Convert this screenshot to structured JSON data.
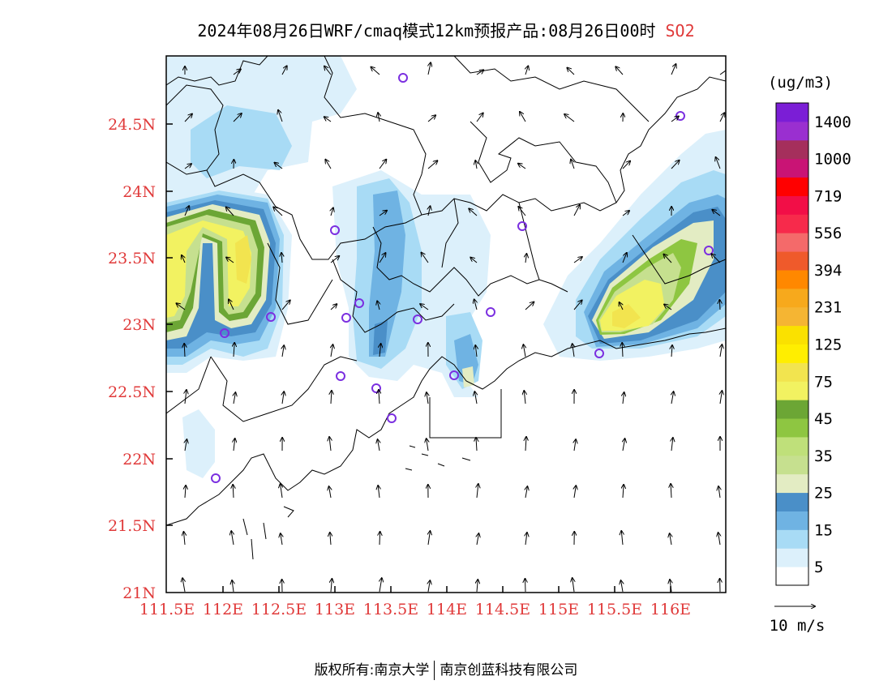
{
  "title": {
    "main": "2024年08月26日WRF/cmaq模式12km预报产品:08月26日00时",
    "pollutant": "SO2"
  },
  "map": {
    "lat_labels": [
      "24.5N",
      "24N",
      "23.5N",
      "23N",
      "22.5N",
      "22N",
      "21.5N",
      "21N"
    ],
    "lon_labels": [
      "111.5E",
      "112E",
      "112.5E",
      "113E",
      "113.5E",
      "114E",
      "114.5E",
      "115E",
      "115.5E",
      "116E"
    ]
  },
  "colorbar": {
    "unit": "(ug/m3)",
    "colors": [
      "#ffffff",
      "#dcf0fb",
      "#a8dbf5",
      "#6fb3e3",
      "#4a8fc8",
      "#e3ecc3",
      "#c6e08f",
      "#bfe07a",
      "#8ec641",
      "#6ca635",
      "#f2f261",
      "#f2e44f",
      "#ffee00",
      "#fae100",
      "#f5b533",
      "#f7a91c",
      "#ff8800",
      "#ef5a2b",
      "#f46a6a",
      "#f72a4b",
      "#f20e47",
      "#ff0000",
      "#c91475",
      "#a52f5c",
      "#9a2fd0",
      "#7b1ed6"
    ],
    "labels": [
      "5",
      "15",
      "25",
      "35",
      "45",
      "75",
      "125",
      "231",
      "394",
      "556",
      "719",
      "1000",
      "1400"
    ]
  },
  "wind_legend": {
    "label": "10 m/s"
  },
  "footer": {
    "left": "版权所有:南京大学",
    "right": "南京创蓝科技有限公司"
  }
}
